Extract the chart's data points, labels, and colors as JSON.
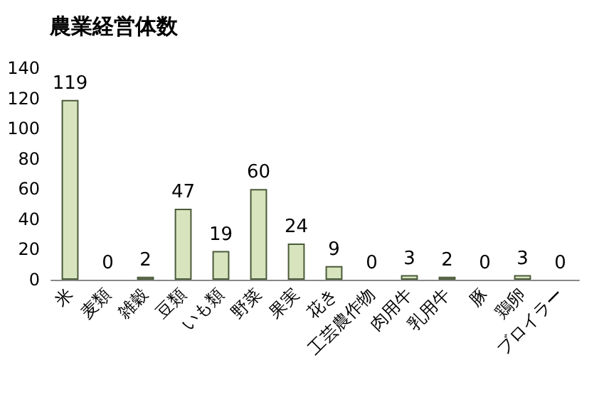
{
  "chart_data": {
    "type": "bar",
    "title": "農業経営体数",
    "categories": [
      "米",
      "麦類",
      "雑穀",
      "豆類",
      "いも類",
      "野菜",
      "果実",
      "花き",
      "工芸農作物",
      "肉用牛",
      "乳用牛",
      "豚",
      "鶏卵",
      "ブロイラー"
    ],
    "values": [
      119,
      0,
      2,
      47,
      19,
      60,
      24,
      9,
      0,
      3,
      2,
      0,
      3,
      0
    ],
    "color": "#d7e4bd",
    "ylim": [
      0,
      140
    ],
    "yticks": [
      0,
      20,
      40,
      60,
      80,
      100,
      120,
      140
    ],
    "grid": false,
    "data_labels": true
  }
}
